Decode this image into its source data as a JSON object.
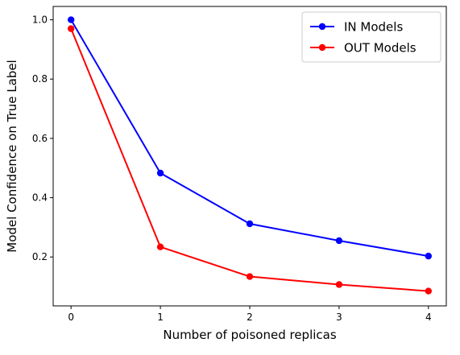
{
  "chart_data": {
    "type": "line",
    "title": "",
    "xlabel": "Number of poisoned replicas",
    "ylabel": "Model Confidence on True Label",
    "x": [
      0,
      1,
      2,
      3,
      4
    ],
    "xlim": [
      -0.2,
      4.2
    ],
    "ylim": [
      0.035,
      1.045
    ],
    "xticks": [
      0,
      1,
      2,
      3,
      4
    ],
    "yticks": [
      0.2,
      0.4,
      0.6,
      0.8,
      1.0
    ],
    "ytick_labels": [
      "0.2",
      "0.4",
      "0.6",
      "0.8",
      "1.0"
    ],
    "grid": false,
    "legend_position": "top-right",
    "series": [
      {
        "name": "IN Models",
        "color": "#0000ff",
        "marker": "circle",
        "values": [
          1.0,
          0.483,
          0.312,
          0.255,
          0.203
        ]
      },
      {
        "name": "OUT Models",
        "color": "#ff0000",
        "marker": "circle",
        "values": [
          0.97,
          0.234,
          0.134,
          0.107,
          0.085
        ]
      }
    ]
  }
}
